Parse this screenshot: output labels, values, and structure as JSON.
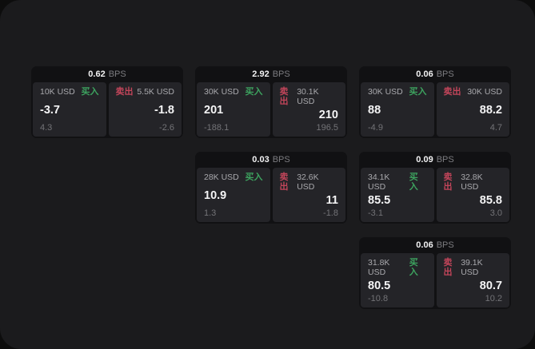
{
  "theme": {
    "page_bg": "#0d0d0d",
    "panel_bg": "#1b1b1d",
    "card_bg": "#111113",
    "tile_bg": "#242428",
    "text_primary": "#f5f5f6",
    "text_secondary": "#a9a9ad",
    "text_muted": "#737377",
    "buy_color": "#3da35f",
    "sell_color": "#c2455a"
  },
  "labels": {
    "bps_unit": "BPS",
    "buy": "买入",
    "sell": "卖出"
  },
  "cards": [
    {
      "row": 1,
      "col": 1,
      "spread": "0.62",
      "buy": {
        "size": "10K USD",
        "price": "-3.7",
        "delta": "4.3"
      },
      "sell": {
        "size": "5.5K USD",
        "price": "-1.8",
        "delta": "-2.6"
      }
    },
    {
      "row": 1,
      "col": 2,
      "spread": "2.92",
      "buy": {
        "size": "30K USD",
        "price": "201",
        "delta": "-188.1"
      },
      "sell": {
        "size": "30.1K USD",
        "price": "210",
        "delta": "196.5"
      }
    },
    {
      "row": 1,
      "col": 3,
      "spread": "0.06",
      "buy": {
        "size": "30K USD",
        "price": "88",
        "delta": "-4.9"
      },
      "sell": {
        "size": "30K USD",
        "price": "88.2",
        "delta": "4.7"
      }
    },
    {
      "row": 2,
      "col": 2,
      "spread": "0.03",
      "buy": {
        "size": "28K USD",
        "price": "10.9",
        "delta": "1.3"
      },
      "sell": {
        "size": "32.6K USD",
        "price": "11",
        "delta": "-1.8"
      }
    },
    {
      "row": 2,
      "col": 3,
      "spread": "0.09",
      "buy": {
        "size": "34.1K USD",
        "price": "85.5",
        "delta": "-3.1"
      },
      "sell": {
        "size": "32.8K USD",
        "price": "85.8",
        "delta": "3.0"
      }
    },
    {
      "row": 3,
      "col": 3,
      "spread": "0.06",
      "buy": {
        "size": "31.8K USD",
        "price": "80.5",
        "delta": "-10.8"
      },
      "sell": {
        "size": "39.1K USD",
        "price": "80.7",
        "delta": "10.2"
      }
    }
  ]
}
